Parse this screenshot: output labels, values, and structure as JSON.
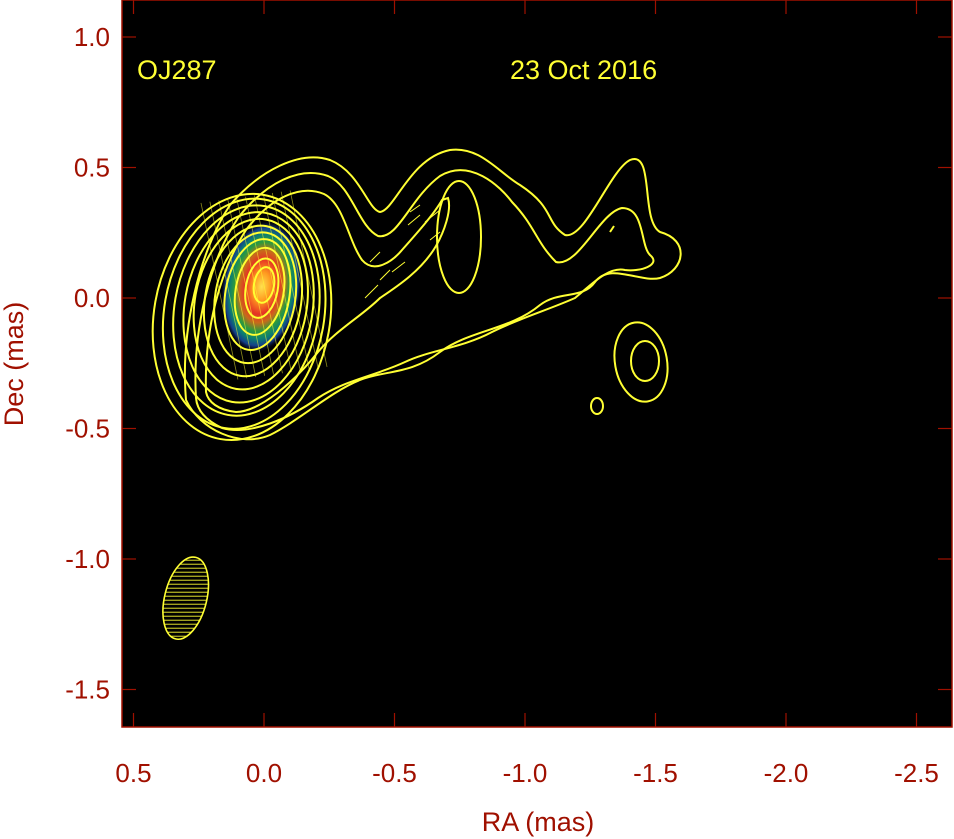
{
  "chart_data": {
    "type": "heatmap",
    "title": "",
    "xlabel": "RA (mas)",
    "ylabel": "Dec (mas)",
    "xlim": [
      0.55,
      -2.65
    ],
    "ylim": [
      -1.65,
      1.15
    ],
    "x_ticks": [
      0.5,
      0.0,
      -0.5,
      -1.0,
      -1.5,
      -2.0,
      -2.5
    ],
    "x_tick_labels": [
      "0.5",
      "0.0",
      "-0.5",
      "-1.0",
      "-1.5",
      "-2.0",
      "-2.5"
    ],
    "y_ticks": [
      1.0,
      0.5,
      0.0,
      -0.5,
      -1.0,
      -1.5
    ],
    "y_tick_labels": [
      "1.0",
      "0.5",
      "0.0",
      "-0.5",
      "-1.0",
      "-1.5"
    ],
    "annotations": {
      "source": "OJ287",
      "date": "23 Oct 2016"
    },
    "core": {
      "ra": 0.0,
      "dec": 0.05
    },
    "beam": {
      "ra": 0.3,
      "dec": -1.15,
      "major_mas": 0.3,
      "minor_mas": 0.17
    },
    "colors": {
      "background": "#000000",
      "contour": "#ffff33",
      "axis": "#a01000",
      "colormap": [
        "#1a237e",
        "#1565c0",
        "#00897b",
        "#43a047",
        "#ffeb3b",
        "#ff9800",
        "#e53935",
        "#ffd54f"
      ]
    },
    "grid": false
  }
}
